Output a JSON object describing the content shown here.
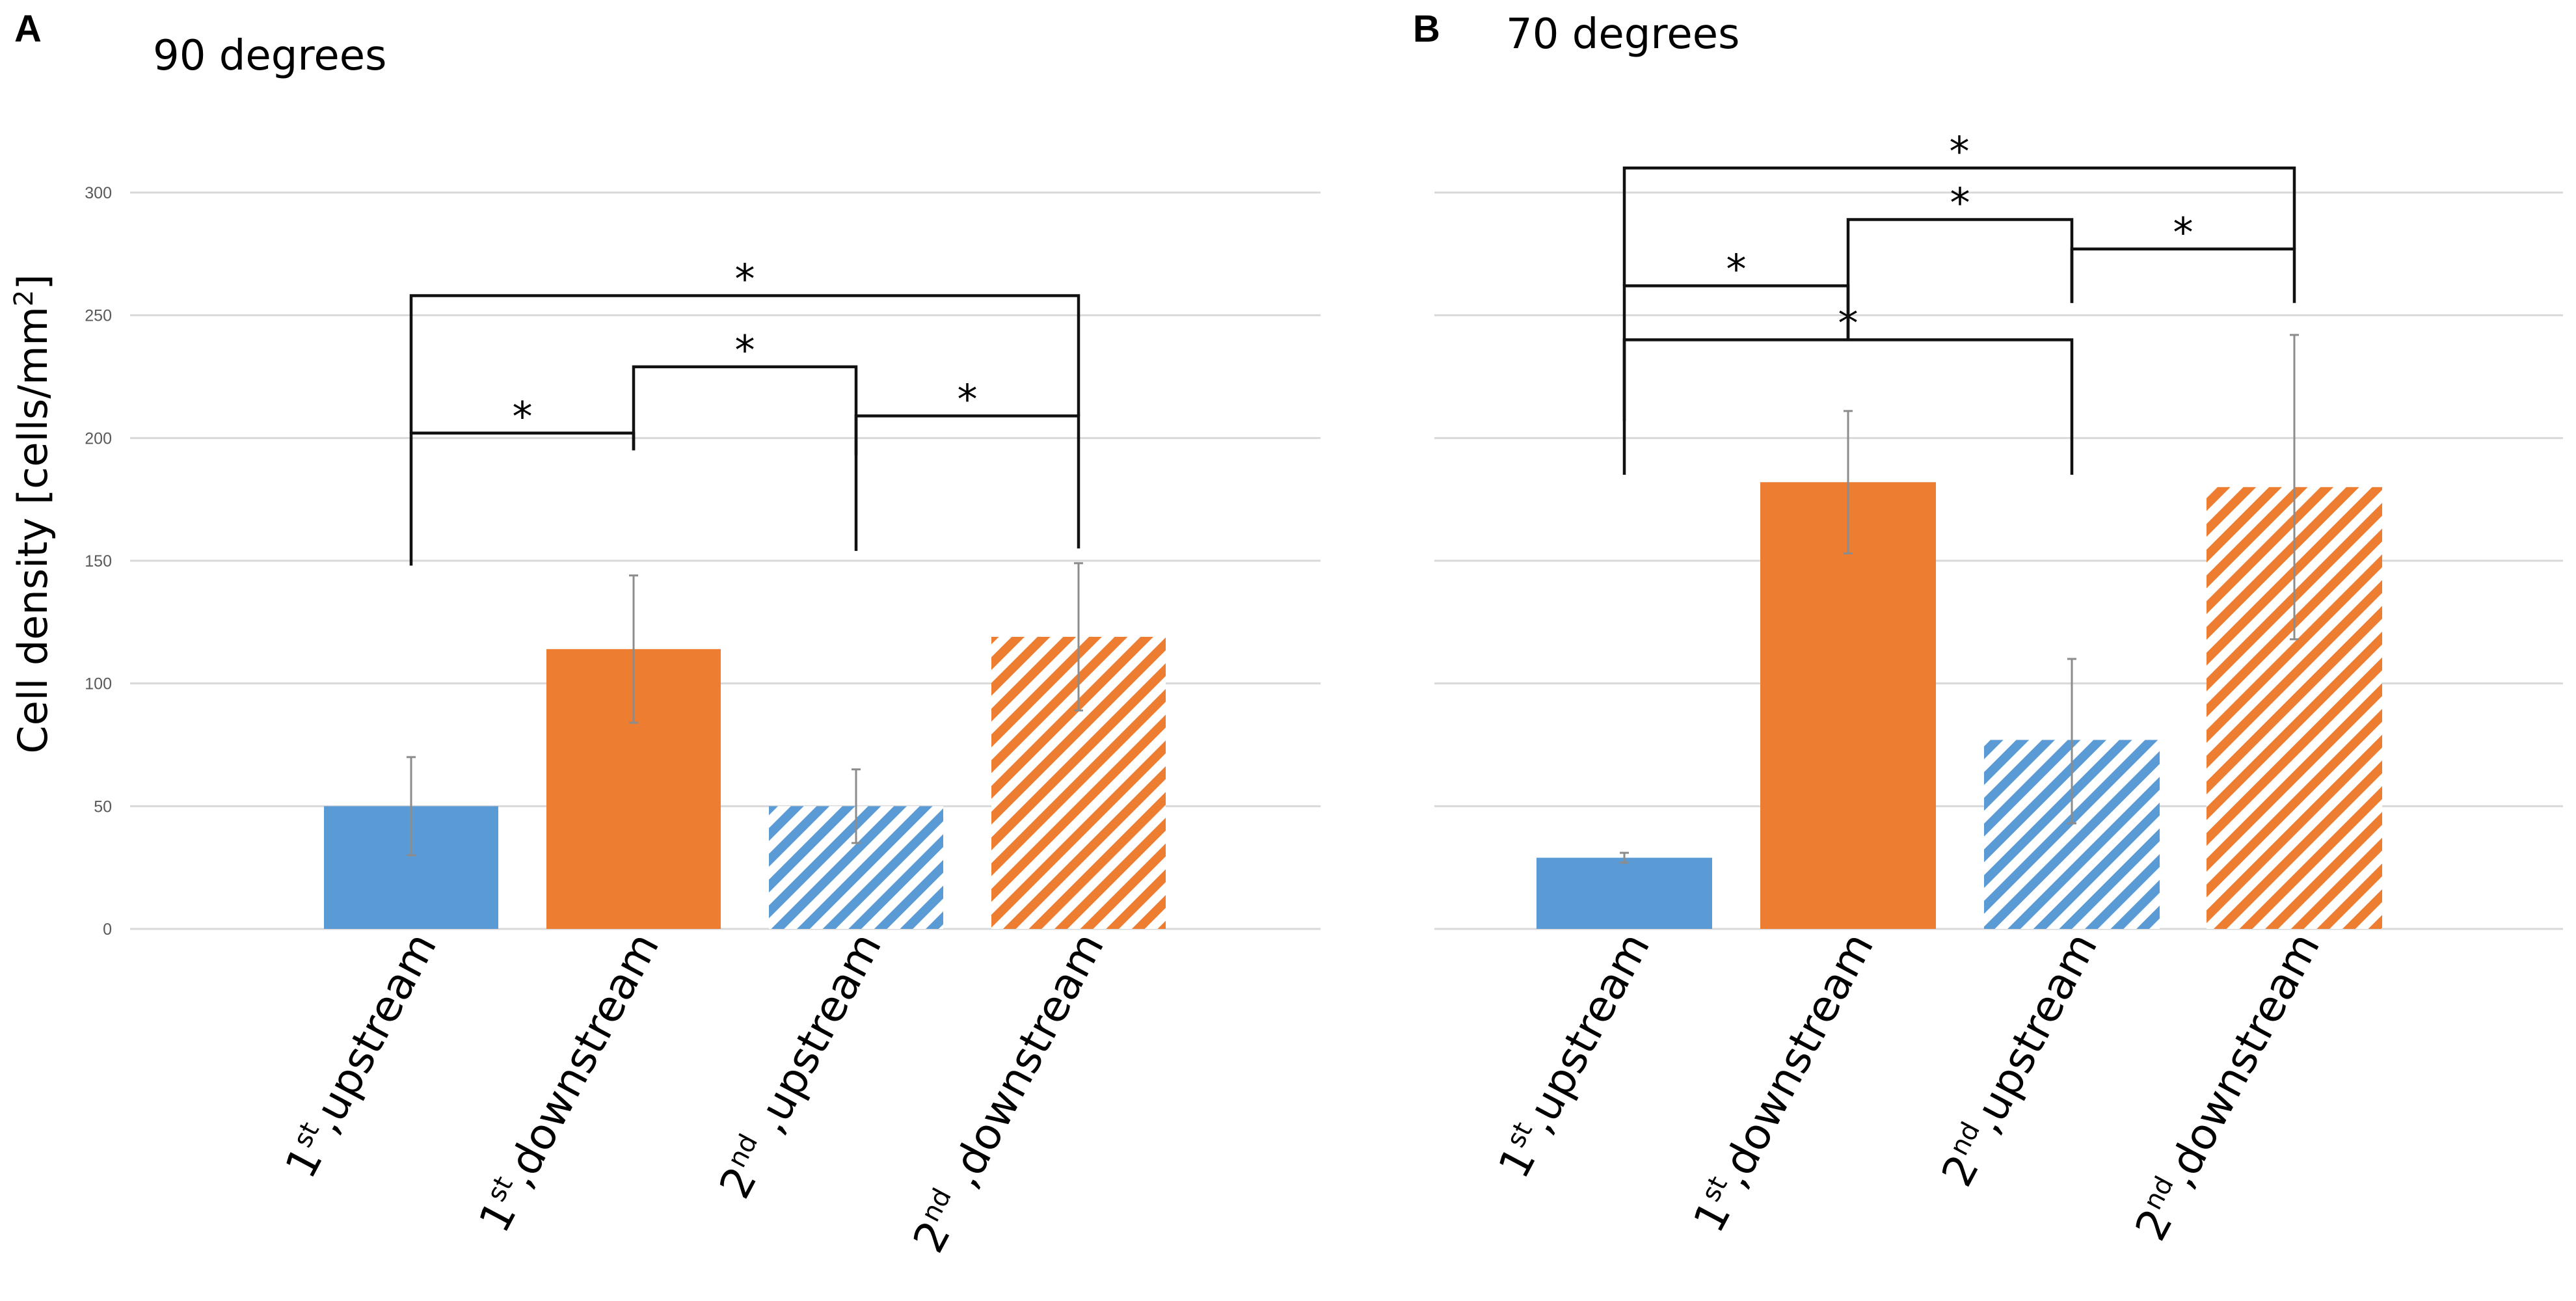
{
  "figure": {
    "ylabel": "Cell density [cells/mm",
    "ylabel_sup": "2",
    "ylabel_end": "]"
  },
  "colors": {
    "blue": "#5b9bd5",
    "orange": "#ed7d31"
  },
  "chart_data": [
    {
      "type": "bar",
      "panel": "A",
      "title": "90 degrees",
      "ylim": [
        0,
        300
      ],
      "yticks": [
        0,
        50,
        100,
        150,
        200,
        250,
        300
      ],
      "categories": [
        {
          "main": "1",
          "sup": "st",
          "rest": ",upstream",
          "color": "blue",
          "hatched": false
        },
        {
          "main": "1",
          "sup": "st",
          "rest": ",downstream",
          "color": "orange",
          "hatched": false
        },
        {
          "main": "2",
          "sup": "nd",
          "rest": " ,upstream",
          "color": "blue",
          "hatched": true
        },
        {
          "main": "2",
          "sup": "nd",
          "rest": " ,downstream",
          "color": "orange",
          "hatched": true
        }
      ],
      "values": [
        50,
        114,
        50,
        119
      ],
      "errors": [
        [
          30,
          70
        ],
        [
          84,
          144
        ],
        [
          35,
          65
        ],
        [
          89,
          149
        ]
      ],
      "significance": [
        {
          "from": 0,
          "to": 1,
          "level": 202,
          "from_end": 148,
          "to_end": 195,
          "label": "*"
        },
        {
          "from": 1,
          "to": 2,
          "level": 229,
          "from_end": 195,
          "to_end": 154,
          "label": "*"
        },
        {
          "from": 2,
          "to": 3,
          "level": 209,
          "from_end": 193,
          "to_end": 155,
          "label": "*"
        },
        {
          "from": 0,
          "to": 3,
          "level": 258,
          "from_end": 202,
          "to_end": 209,
          "label": "*"
        }
      ]
    },
    {
      "type": "bar",
      "panel": "B",
      "title": "70 degrees",
      "ylim": [
        0,
        300
      ],
      "yticks": [
        0,
        50,
        100,
        150,
        200,
        250,
        300
      ],
      "categories": [
        {
          "main": "1",
          "sup": "st",
          "rest": ",upstream",
          "color": "blue",
          "hatched": false
        },
        {
          "main": "1",
          "sup": "st",
          "rest": ",downstream",
          "color": "orange",
          "hatched": false
        },
        {
          "main": "2",
          "sup": "nd",
          "rest": ",upstream",
          "color": "blue",
          "hatched": true
        },
        {
          "main": "2",
          "sup": "nd",
          "rest": ",downstream",
          "color": "orange",
          "hatched": true
        }
      ],
      "values": [
        29,
        182,
        77,
        180
      ],
      "errors": [
        [
          27,
          31
        ],
        [
          153,
          211
        ],
        [
          43,
          110
        ],
        [
          118,
          242
        ]
      ],
      "significance": [
        {
          "from": 0,
          "to": 1,
          "level": 262,
          "from_end": 207,
          "to_end": 240,
          "label": "*"
        },
        {
          "from": 0,
          "to": 2,
          "level": 240,
          "from_end": 185,
          "to_end": 185,
          "label": "*"
        },
        {
          "from": 1,
          "to": 2,
          "level": 289,
          "from_end": 240,
          "to_end": 255,
          "label": "*"
        },
        {
          "from": 2,
          "to": 3,
          "level": 277,
          "from_end": 255,
          "to_end": 255,
          "label": "*"
        },
        {
          "from": 0,
          "to": 3,
          "level": 310,
          "from_end": 262,
          "to_end": 277,
          "label": "*"
        }
      ]
    }
  ]
}
